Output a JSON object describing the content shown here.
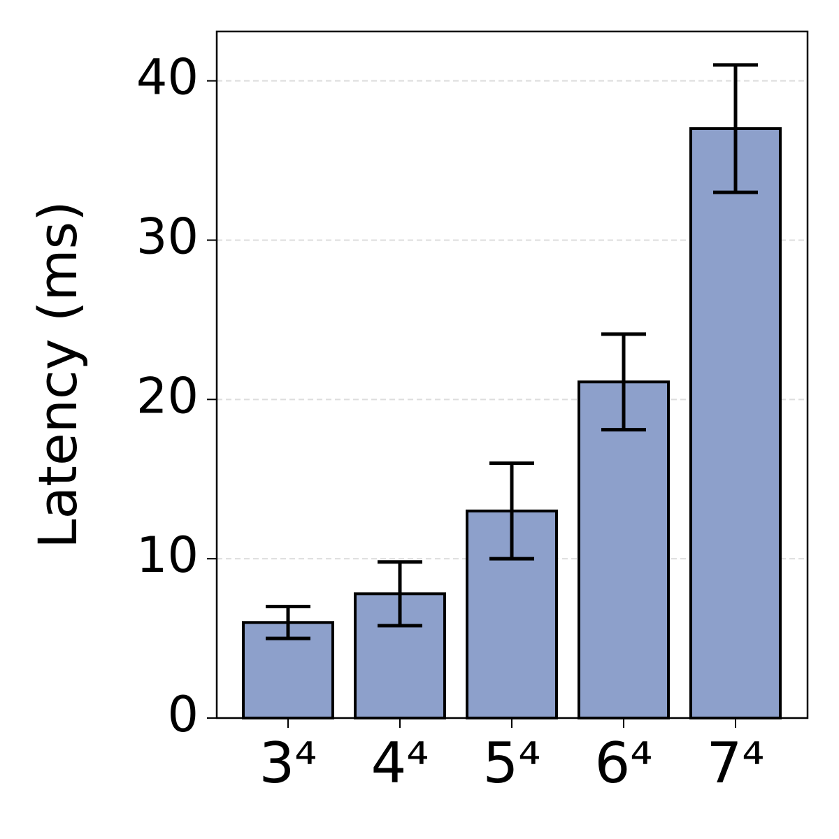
{
  "chart_data": {
    "type": "bar",
    "y_label": "Latency (ms)",
    "categories": [
      "3⁴",
      "4⁴",
      "5⁴",
      "6⁴",
      "7⁴"
    ],
    "values": [
      6,
      7.8,
      13,
      21.1,
      37
    ],
    "errors": [
      1,
      2,
      3,
      3,
      4
    ],
    "color": "#8da0cb",
    "ylim": [
      0,
      43.1
    ],
    "yticks": [
      0,
      10,
      20,
      30,
      40
    ],
    "grid": true
  }
}
